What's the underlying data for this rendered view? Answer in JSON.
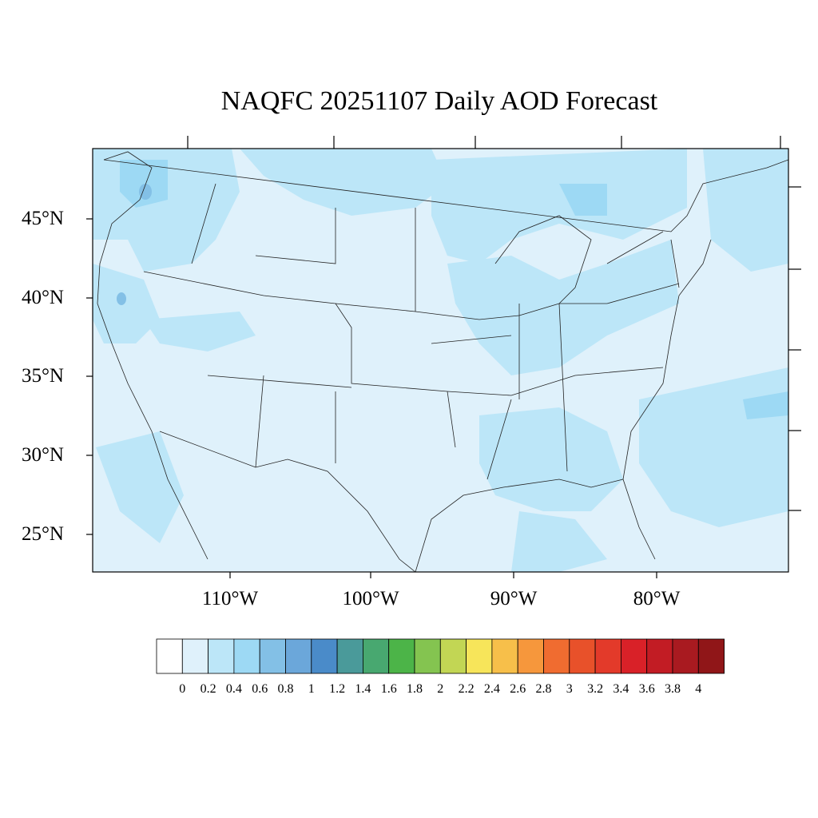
{
  "title": "NAQFC 20251107 Daily AOD Forecast",
  "map": {
    "lat_labels": [
      "45°N",
      "40°N",
      "35°N",
      "30°N",
      "25°N"
    ],
    "lon_labels": [
      "110°W",
      "100°W",
      "90°W",
      "80°W"
    ],
    "background_color": "#dff1fb"
  },
  "colorbar": {
    "labels": [
      "0",
      "0.2",
      "0.4",
      "0.6",
      "0.8",
      "1",
      "1.2",
      "1.4",
      "1.6",
      "1.8",
      "2",
      "2.2",
      "2.4",
      "2.6",
      "2.8",
      "3",
      "3.2",
      "3.4",
      "3.6",
      "3.8",
      "4"
    ],
    "colors": [
      "#ffffff",
      "#dff1fb",
      "#bce6f8",
      "#9dd9f4",
      "#83c0e6",
      "#6ba7da",
      "#4a8bc9",
      "#4a9a9a",
      "#48a870",
      "#4cb448",
      "#84c450",
      "#c2d654",
      "#f7e55a",
      "#f7bf4a",
      "#f6973c",
      "#f06c30",
      "#e8512a",
      "#e33a2a",
      "#d92128",
      "#c21c24",
      "#a91a20",
      "#901618"
    ]
  }
}
